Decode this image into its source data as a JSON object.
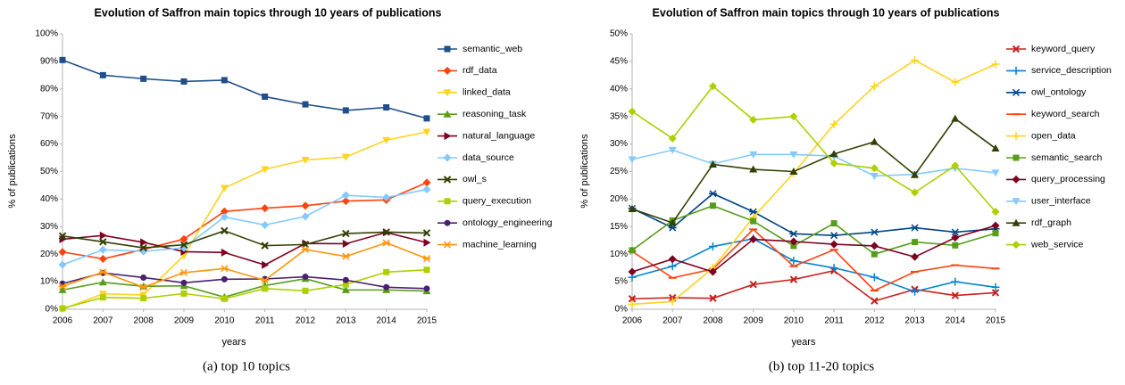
{
  "chart_data": [
    {
      "type": "line",
      "title": "Evolution of Saffron main topics through 10 years of publications",
      "xlabel": "years",
      "ylabel": "% of publications",
      "caption": "(a) top 10 topics",
      "grid": false,
      "legend": "right",
      "categories": [
        "2006",
        "2007",
        "2008",
        "2009",
        "2010",
        "2011",
        "2012",
        "2013",
        "2014",
        "2015"
      ],
      "ylim": [
        0,
        100
      ],
      "yticks": [
        {
          "value": 0,
          "label": "0%"
        },
        {
          "value": 10,
          "label": "10%"
        },
        {
          "value": 20,
          "label": "20%"
        },
        {
          "value": 30,
          "label": "30%"
        },
        {
          "value": 40,
          "label": "40%"
        },
        {
          "value": 50,
          "label": "50%"
        },
        {
          "value": 60,
          "label": "60%"
        },
        {
          "value": 70,
          "label": "70%"
        },
        {
          "value": 80,
          "label": "80%"
        },
        {
          "value": 90,
          "label": "90%"
        },
        {
          "value": 100,
          "label": "100%"
        }
      ],
      "series": [
        {
          "name": "semantic_web",
          "color": "#1f4e8c",
          "marker": "square",
          "values": [
            90.5,
            85,
            83.7,
            82.7,
            83.2,
            77.2,
            74.4,
            72.2,
            73.3,
            69.3
          ]
        },
        {
          "name": "rdf_data",
          "color": "#ff420e",
          "marker": "diamond",
          "values": [
            20.8,
            18.3,
            21.7,
            25.5,
            35.5,
            36.7,
            37.6,
            39.3,
            39.7,
            46
          ]
        },
        {
          "name": "linked_data",
          "color": "#ffd320",
          "marker": "triangle-down",
          "values": [
            0,
            5.6,
            5.2,
            19.5,
            44,
            50.8,
            54.2,
            55.3,
            61.4,
            64.4
          ]
        },
        {
          "name": "reasoning_task",
          "color": "#579d1c",
          "marker": "triangle",
          "values": [
            7,
            9.8,
            8.3,
            8.5,
            4.4,
            8.6,
            11.1,
            7,
            7,
            6.6
          ]
        },
        {
          "name": "natural_language",
          "color": "#7e0021",
          "marker": "triangle-right",
          "values": [
            25.4,
            26.8,
            24.3,
            20.9,
            20.6,
            16.1,
            23.9,
            23.8,
            27.9,
            24.2
          ]
        },
        {
          "name": "data_source",
          "color": "#83caff",
          "marker": "diamond",
          "values": [
            16.2,
            21.6,
            21,
            22.3,
            33.5,
            30.6,
            33.7,
            41.4,
            40.6,
            43.5
          ]
        },
        {
          "name": "owl_s",
          "color": "#314004",
          "marker": "x",
          "values": [
            26.6,
            24.5,
            22.3,
            23.4,
            28.5,
            23.1,
            23.5,
            27.5,
            28,
            27.7
          ]
        },
        {
          "name": "query_execution",
          "color": "#aecf00",
          "marker": "square",
          "values": [
            0.3,
            4.3,
            4,
            5.7,
            3.8,
            7.5,
            6.7,
            9,
            13.5,
            14.3
          ]
        },
        {
          "name": "ontology_engineering",
          "color": "#4b1f6f",
          "marker": "circle",
          "values": [
            9.3,
            13.2,
            11.5,
            9.6,
            10.9,
            11,
            11.8,
            10.6,
            8,
            7.5
          ]
        },
        {
          "name": "machine_learning",
          "color": "#ff950e",
          "marker": "star",
          "values": [
            8.3,
            13.5,
            8,
            13.3,
            14.8,
            10.5,
            21.7,
            19.2,
            24.1,
            18.4
          ]
        }
      ]
    },
    {
      "type": "line",
      "title": "Evolution of Saffron main topics through 10 years of publications",
      "xlabel": "years",
      "ylabel": "% of publications",
      "caption": "(b) top 11-20 topics",
      "grid": false,
      "legend": "right",
      "categories": [
        "2006",
        "2007",
        "2008",
        "2009",
        "2010",
        "2011",
        "2012",
        "2013",
        "2014",
        "2015"
      ],
      "ylim": [
        0,
        50
      ],
      "yticks": [
        {
          "value": 0,
          "label": "0%"
        },
        {
          "value": 5,
          "label": "5%"
        },
        {
          "value": 10,
          "label": "10%"
        },
        {
          "value": 15,
          "label": "15%"
        },
        {
          "value": 20,
          "label": "20%"
        },
        {
          "value": 25,
          "label": "25%"
        },
        {
          "value": 30,
          "label": "30%"
        },
        {
          "value": 35,
          "label": "35%"
        },
        {
          "value": 40,
          "label": "40%"
        },
        {
          "value": 45,
          "label": "45%"
        },
        {
          "value": 50,
          "label": "50%"
        }
      ],
      "series": [
        {
          "name": "keyword_query",
          "color": "#c9211e",
          "marker": "x",
          "values": [
            1.9,
            2.1,
            2,
            4.5,
            5.4,
            7,
            1.5,
            3.6,
            2.5,
            3
          ]
        },
        {
          "name": "service_description",
          "color": "#0084d1",
          "marker": "plus",
          "values": [
            5.8,
            7.8,
            11.4,
            12.8,
            8.8,
            7.5,
            5.8,
            3.2,
            5,
            4
          ]
        },
        {
          "name": "owl_ontology",
          "color": "#004586",
          "marker": "star",
          "values": [
            18.3,
            14.8,
            21,
            17.7,
            13.7,
            13.4,
            14,
            14.8,
            14,
            14.6
          ]
        },
        {
          "name": "keyword_search",
          "color": "#ff420e",
          "marker": "dash",
          "values": [
            10.5,
            5.7,
            7.3,
            14.5,
            7.8,
            10.8,
            3.4,
            6.8,
            8,
            7.4
          ]
        },
        {
          "name": "open_data",
          "color": "#ffd320",
          "marker": "plus",
          "values": [
            0.9,
            1.4,
            7.5,
            16.7,
            24.7,
            33.6,
            40.5,
            45.2,
            41.2,
            44.5
          ]
        },
        {
          "name": "semantic_search",
          "color": "#579d1c",
          "marker": "square",
          "values": [
            10.7,
            16.1,
            18.8,
            16,
            11.5,
            15.6,
            10,
            12.2,
            11.6,
            13.8
          ]
        },
        {
          "name": "query_processing",
          "color": "#7e0021",
          "marker": "diamond",
          "values": [
            6.8,
            9.1,
            6.8,
            12.7,
            12.3,
            11.8,
            11.5,
            9.5,
            13,
            15.2
          ]
        },
        {
          "name": "user_interface",
          "color": "#83caff",
          "marker": "triangle-down",
          "values": [
            27.2,
            28.9,
            26.4,
            28.1,
            28.1,
            27.8,
            24.2,
            24.5,
            25.6,
            24.8
          ]
        },
        {
          "name": "rdf_graph",
          "color": "#314004",
          "marker": "triangle",
          "values": [
            18.2,
            15.7,
            26.3,
            25.4,
            25,
            28.2,
            30.4,
            24.4,
            34.6,
            29.2
          ]
        },
        {
          "name": "web_service",
          "color": "#aecf00",
          "marker": "diamond",
          "values": [
            35.9,
            31,
            40.5,
            34.4,
            35,
            26.5,
            25.6,
            21.2,
            26.1,
            17.7
          ]
        }
      ]
    }
  ]
}
